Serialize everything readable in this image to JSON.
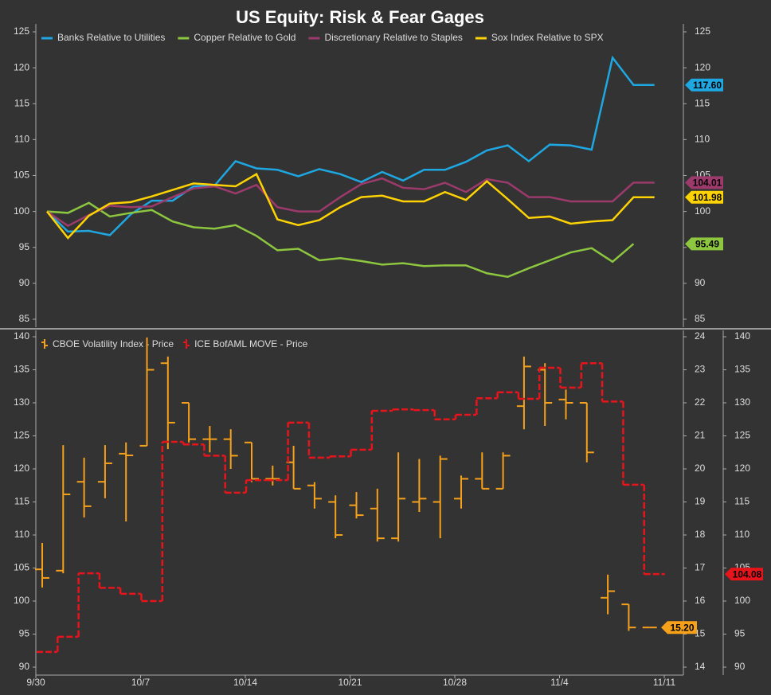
{
  "chart_data": [
    {
      "type": "line",
      "title": "US Equity: Risk & Fear Gages",
      "categories": [
        "9/30",
        null,
        null,
        null,
        null,
        "10/7",
        null,
        null,
        null,
        null,
        "10/14",
        null,
        null,
        null,
        null,
        "10/21",
        null,
        null,
        null,
        null,
        "10/28",
        null,
        null,
        null,
        null,
        "11/4",
        null,
        null,
        null,
        null,
        "11/11"
      ],
      "ylim": [
        85,
        125
      ],
      "yticks": [
        85,
        90,
        95,
        100,
        105,
        110,
        115,
        120,
        125
      ],
      "grid": false,
      "legend": "top",
      "series": [
        {
          "name": "Banks Relative to Utilities",
          "color": "#1ea7e1",
          "values": [
            100,
            97.2,
            97.3,
            96.7,
            99.6,
            101.5,
            101.5,
            103.5,
            103.6,
            107,
            106,
            105.8,
            104.9,
            105.9,
            105.2,
            104.1,
            105.5,
            104.3,
            105.8,
            105.8,
            106.9,
            108.5,
            109.2,
            107,
            109.3,
            109.2,
            108.6,
            121.4,
            117.6,
            117.6,
            null
          ],
          "value_labels": [
            null,
            null,
            null,
            null,
            null,
            null,
            null,
            null,
            null,
            null,
            null,
            null,
            null,
            null,
            null,
            null,
            null,
            null,
            null,
            null,
            null,
            null,
            null,
            null,
            null,
            null,
            null,
            null,
            null,
            "117.60",
            null
          ]
        },
        {
          "name": "Copper Relative to Gold",
          "color": "#8dc63f",
          "values": [
            100,
            99.8,
            101.2,
            99.3,
            99.8,
            100.2,
            98.6,
            97.8,
            97.6,
            98.1,
            96.6,
            94.6,
            94.8,
            93.2,
            93.5,
            93.1,
            92.6,
            92.8,
            92.4,
            92.5,
            92.5,
            91.4,
            90.9,
            92.1,
            93.2,
            94.3,
            94.9,
            93,
            95.49,
            null,
            null
          ]
        },
        {
          "name": "Discretionary Relative to Staples",
          "color": "#9b3a6b",
          "values": [
            100,
            98.0,
            99.5,
            100.8,
            100.6,
            100.7,
            102.0,
            103.2,
            103.5,
            102.5,
            103.7,
            100.6,
            100.0,
            100.0,
            102.0,
            103.8,
            104.6,
            103.3,
            103.1,
            104.0,
            102.7,
            104.5,
            104.0,
            102.0,
            102.0,
            101.4,
            101.4,
            101.4,
            104.01,
            104.01,
            null
          ]
        },
        {
          "name": "Sox Index Relative to SPX",
          "color": "#ffd200",
          "values": [
            100,
            96.3,
            99.4,
            101.1,
            101.3,
            102.1,
            103.0,
            103.9,
            103.7,
            103.5,
            105.2,
            98.9,
            98.1,
            98.8,
            100.6,
            102.0,
            102.2,
            101.4,
            101.4,
            102.7,
            101.6,
            104.2,
            101.7,
            99.1,
            99.3,
            98.3,
            98.6,
            98.8,
            101.98,
            101.98,
            null
          ]
        }
      ]
    },
    {
      "type": "combo",
      "categories": [
        "9/30",
        null,
        null,
        null,
        null,
        "10/7",
        null,
        null,
        null,
        null,
        "10/14",
        null,
        null,
        null,
        null,
        "10/21",
        null,
        null,
        null,
        null,
        "10/28",
        null,
        null,
        null,
        null,
        "11/4",
        null,
        null,
        null,
        null,
        "11/11"
      ],
      "ylim": [
        90,
        140
      ],
      "yticks": [
        90,
        95,
        100,
        105,
        110,
        115,
        120,
        125,
        130,
        135,
        140
      ],
      "y2lim": [
        14,
        24
      ],
      "y2ticks": [
        14,
        15,
        16,
        17,
        18,
        19,
        20,
        21,
        22,
        23,
        24
      ],
      "grid": false,
      "legend": "top",
      "series": [
        {
          "name": "CBOE Volatility Index - Price",
          "type": "ohlc",
          "color": "#f7a11a",
          "axis": "y2",
          "open": [
            16.96,
            16.92,
            19.61,
            19.61,
            20.46,
            20.7,
            23.2,
            22.0,
            20.9,
            20.9,
            20.8,
            19.7,
            20.2,
            19.5,
            19.0,
            18.9,
            18.8,
            17.9,
            19.0,
            19.0,
            19.1,
            19.7,
            19.4,
            21.9,
            23.0,
            22.1,
            22.0,
            16.1,
            15.9,
            15.2,
            null
          ],
          "high": [
            17.76,
            20.72,
            20.34,
            20.72,
            20.8,
            23.98,
            23.4,
            22.0,
            21.3,
            21.2,
            20.8,
            20.1,
            20.7,
            19.6,
            19.2,
            19.3,
            19.4,
            20.5,
            20.3,
            20.4,
            19.8,
            20.5,
            20.5,
            23.4,
            23.2,
            22.4,
            22.0,
            16.8,
            15.9,
            15.2,
            null
          ],
          "low": [
            16.41,
            16.84,
            18.53,
            19.11,
            18.41,
            20.7,
            20.6,
            20.8,
            20.5,
            20.0,
            19.6,
            19.5,
            19.4,
            18.8,
            17.9,
            18.5,
            17.8,
            17.8,
            18.7,
            17.9,
            18.8,
            19.4,
            19.4,
            21.2,
            21.3,
            21.5,
            20.2,
            15.6,
            15.1,
            15.2,
            null
          ],
          "values": [
            16.7,
            19.23,
            18.87,
            20.17,
            20.41,
            23.0,
            21.4,
            20.9,
            20.9,
            20.4,
            19.7,
            19.7,
            19.4,
            19.1,
            18.0,
            18.6,
            17.9,
            19.1,
            19.1,
            20.3,
            19.7,
            19.4,
            20.4,
            23.1,
            22.0,
            22.0,
            20.5,
            16.3,
            15.2,
            15.2,
            null
          ],
          "value_labels": [
            null,
            null,
            null,
            null,
            null,
            null,
            null,
            null,
            null,
            null,
            null,
            null,
            null,
            null,
            null,
            null,
            null,
            null,
            null,
            null,
            null,
            null,
            null,
            null,
            null,
            null,
            null,
            null,
            null,
            "15.20",
            null
          ]
        },
        {
          "name": "ICE BofAML MOVE - Price",
          "type": "step",
          "color": "#e8141b",
          "axis": "y",
          "values": [
            92.3,
            94.6,
            104.2,
            102.0,
            101.1,
            100.0,
            124.1,
            123.7,
            122.0,
            116.4,
            118.3,
            118.3,
            127.0,
            121.7,
            121.9,
            122.9,
            128.8,
            129.0,
            128.9,
            127.5,
            128.2,
            130.7,
            131.6,
            130.6,
            135.3,
            132.3,
            136.0,
            130.2,
            117.6,
            104.08,
            null
          ]
        }
      ]
    }
  ]
}
